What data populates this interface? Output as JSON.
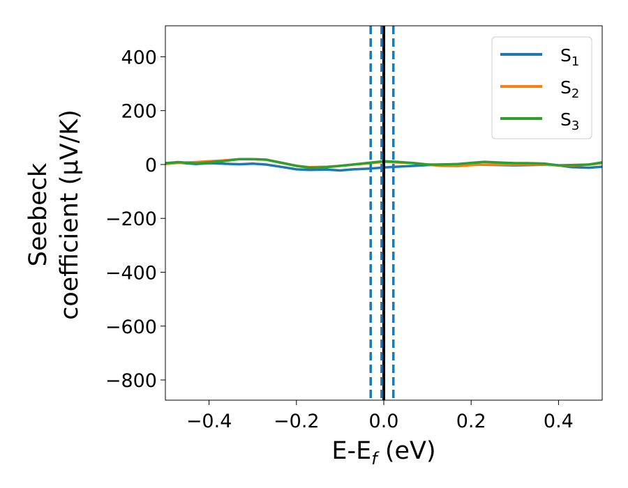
{
  "chart_data": {
    "type": "line",
    "xlabel": "E-E",
    "xlabel_sub": "f",
    "xlabel_unit": " (eV)",
    "ylabel_line1": "Seebeck",
    "ylabel_line2": "coefficient  (μV/K)",
    "xlim": [
      -0.5,
      0.5
    ],
    "ylim": [
      -875,
      515
    ],
    "x_ticks": [
      -0.4,
      -0.2,
      0.0,
      0.2,
      0.4
    ],
    "x_tick_labels": [
      "−0.4",
      "−0.2",
      "0.0",
      "0.2",
      "0.4"
    ],
    "y_ticks": [
      400,
      200,
      0,
      -200,
      -400,
      -600,
      -800
    ],
    "y_tick_labels": [
      "400",
      "200",
      "0",
      "−200",
      "−400",
      "−600",
      "−800"
    ],
    "grid": false,
    "legend_position": "top-right",
    "series": [
      {
        "name": "S1",
        "label": "S",
        "label_sub": "1",
        "color": "#1f77b4",
        "x": [
          -0.5,
          -0.47,
          -0.43,
          -0.4,
          -0.37,
          -0.33,
          -0.3,
          -0.27,
          -0.23,
          -0.2,
          -0.17,
          -0.13,
          -0.1,
          -0.07,
          -0.03,
          0.0,
          0.03,
          0.07,
          0.1,
          0.13,
          0.17,
          0.2,
          0.23,
          0.27,
          0.3,
          0.33,
          0.37,
          0.4,
          0.43,
          0.47,
          0.5
        ],
        "y": [
          3,
          7,
          2,
          5,
          3,
          1,
          3,
          0,
          -10,
          -18,
          -20,
          -19,
          -22,
          -18,
          -15,
          -11,
          -8,
          -5,
          -2,
          0,
          1,
          0,
          -1,
          -2,
          -3,
          -2,
          -1,
          -3,
          -10,
          -12,
          -8
        ]
      },
      {
        "name": "S2",
        "label": "S",
        "label_sub": "2",
        "color": "#ff7f0e",
        "x": [
          -0.5,
          -0.47,
          -0.43,
          -0.4,
          -0.37,
          -0.33,
          -0.3,
          -0.27,
          -0.23,
          -0.2,
          -0.17,
          -0.13,
          -0.1,
          -0.07,
          -0.03,
          0.0,
          0.03,
          0.07,
          0.1,
          0.13,
          0.17,
          0.2,
          0.23,
          0.27,
          0.3,
          0.33,
          0.37,
          0.4,
          0.43,
          0.47,
          0.5
        ],
        "y": [
          2,
          6,
          9,
          12,
          15,
          20,
          20,
          18,
          5,
          -5,
          -10,
          -8,
          -5,
          0,
          5,
          10,
          8,
          5,
          0,
          -5,
          -6,
          -2,
          0,
          0,
          0,
          1,
          0,
          -3,
          -4,
          0,
          5
        ]
      },
      {
        "name": "S3",
        "label": "S",
        "label_sub": "3",
        "color": "#2ca02c",
        "x": [
          -0.5,
          -0.47,
          -0.43,
          -0.4,
          -0.37,
          -0.33,
          -0.3,
          -0.27,
          -0.23,
          -0.2,
          -0.17,
          -0.13,
          -0.1,
          -0.07,
          -0.03,
          0.0,
          0.03,
          0.07,
          0.1,
          0.13,
          0.17,
          0.2,
          0.23,
          0.27,
          0.3,
          0.33,
          0.37,
          0.4,
          0.43,
          0.47,
          0.5
        ],
        "y": [
          5,
          9,
          4,
          8,
          12,
          20,
          20,
          18,
          5,
          -5,
          -12,
          -10,
          -5,
          0,
          7,
          12,
          10,
          5,
          0,
          0,
          2,
          6,
          10,
          7,
          5,
          5,
          3,
          -3,
          -2,
          0,
          8
        ]
      }
    ],
    "vertical_lines": [
      {
        "x": 0.0,
        "color": "#000000",
        "style": "solid"
      },
      {
        "x": -0.03,
        "color": "#1f77b4",
        "style": "dashed"
      },
      {
        "x": -0.005,
        "color": "#1f77b4",
        "style": "dashed"
      },
      {
        "x": 0.022,
        "color": "#1f77b4",
        "style": "dashed"
      }
    ]
  }
}
